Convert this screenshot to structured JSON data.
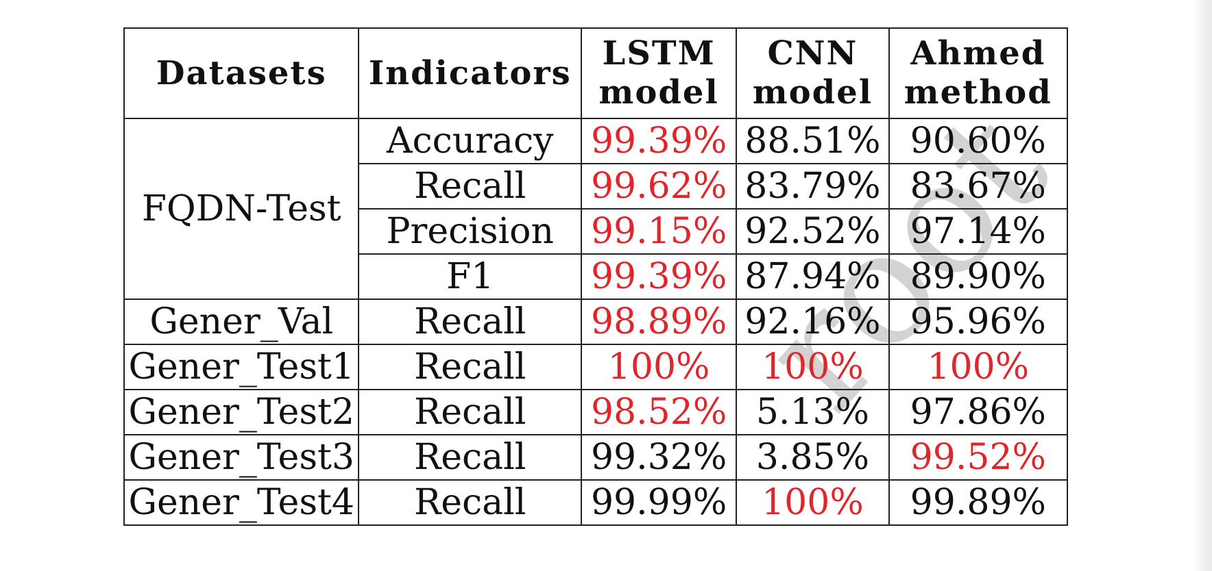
{
  "watermark": "root",
  "table": {
    "headers": [
      [
        "Datasets"
      ],
      [
        "Indicators"
      ],
      [
        "LSTM",
        "model"
      ],
      [
        "CNN",
        "model"
      ],
      [
        "Ahmed",
        "method"
      ]
    ],
    "groups": [
      {
        "dataset": "FQDN-Test",
        "rows": [
          {
            "indicator": "Accuracy",
            "values": [
              "99.39%",
              "88.51%",
              "90.60%"
            ],
            "highlight": [
              true,
              false,
              false
            ]
          },
          {
            "indicator": "Recall",
            "values": [
              "99.62%",
              "83.79%",
              "83.67%"
            ],
            "highlight": [
              true,
              false,
              false
            ]
          },
          {
            "indicator": "Precision",
            "values": [
              "99.15%",
              "92.52%",
              "97.14%"
            ],
            "highlight": [
              true,
              false,
              false
            ]
          },
          {
            "indicator": "F1",
            "values": [
              "99.39%",
              "87.94%",
              "89.90%"
            ],
            "highlight": [
              true,
              false,
              false
            ]
          }
        ]
      },
      {
        "dataset": "Gener_Val",
        "rows": [
          {
            "indicator": "Recall",
            "values": [
              "98.89%",
              "92.16%",
              "95.96%"
            ],
            "highlight": [
              true,
              false,
              false
            ]
          }
        ]
      },
      {
        "dataset": "Gener_Test1",
        "rows": [
          {
            "indicator": "Recall",
            "values": [
              "100%",
              "100%",
              "100%"
            ],
            "highlight": [
              true,
              true,
              true
            ]
          }
        ]
      },
      {
        "dataset": "Gener_Test2",
        "rows": [
          {
            "indicator": "Recall",
            "values": [
              "98.52%",
              "5.13%",
              "97.86%"
            ],
            "highlight": [
              true,
              false,
              false
            ]
          }
        ]
      },
      {
        "dataset": "Gener_Test3",
        "rows": [
          {
            "indicator": "Recall",
            "values": [
              "99.32%",
              "3.85%",
              "99.52%"
            ],
            "highlight": [
              false,
              false,
              true
            ]
          }
        ]
      },
      {
        "dataset": "Gener_Test4",
        "rows": [
          {
            "indicator": "Recall",
            "values": [
              "99.99%",
              "100%",
              "99.89%"
            ],
            "highlight": [
              false,
              true,
              false
            ]
          }
        ]
      }
    ],
    "colors": {
      "highlight": "#e0252b",
      "text": "#111111",
      "border": "#222222"
    }
  }
}
